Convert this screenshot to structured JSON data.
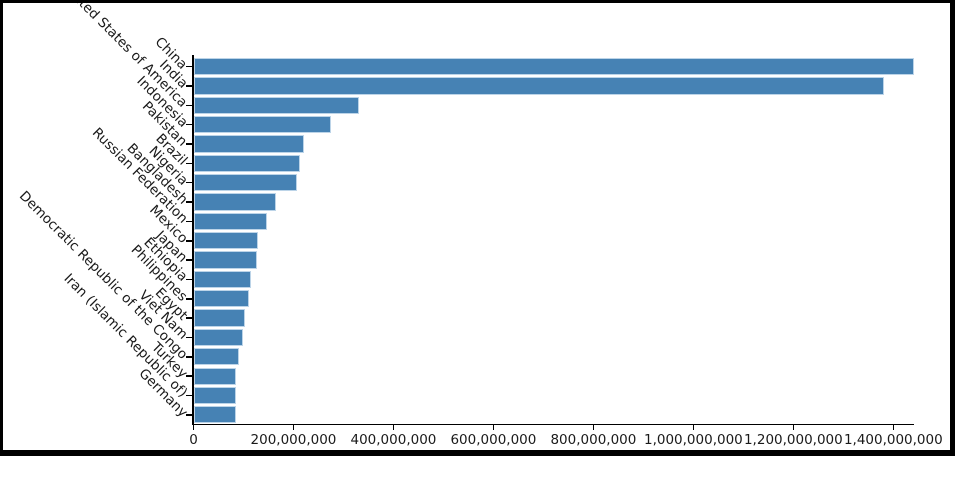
{
  "chart_data": {
    "type": "bar",
    "orientation": "horizontal",
    "title": "",
    "xlabel": "",
    "ylabel": "",
    "legend": "none",
    "grid": false,
    "categories": [
      "China",
      "India",
      "United States of America",
      "Indonesia",
      "Pakistan",
      "Brazil",
      "Nigeria",
      "Bangladesh",
      "Russian Federation",
      "Mexico",
      "Japan",
      "Ethiopia",
      "Philippines",
      "Egypt",
      "Viet Nam",
      "Democratic Republic of the Congo",
      "Turkey",
      "Iran (Islamic Republic of)",
      "Germany"
    ],
    "values": [
      1439323776,
      1380004385,
      331002651,
      273523615,
      220892340,
      212559417,
      206139589,
      164689383,
      145934462,
      128932753,
      126476461,
      114963588,
      109581078,
      102334404,
      97338579,
      89561403,
      84339067,
      83992949,
      83783942
    ],
    "xlim": [
      0,
      1439323776
    ],
    "xticks": [
      0,
      200000000,
      400000000,
      600000000,
      800000000,
      1000000000,
      1200000000,
      1400000000
    ],
    "xtick_labels": [
      "0",
      "200,000,000",
      "400,000,000",
      "600,000,000",
      "800,000,000",
      "1,000,000,000",
      "1,200,000,000",
      "1,400,000,000"
    ],
    "bar_color": "#4682b4",
    "bar_edge_color": "#bcd4e8",
    "axis_color": "#000000",
    "text_color": "#1a1a1a",
    "frame_color": "#000000",
    "background_color": "#ffffff"
  }
}
